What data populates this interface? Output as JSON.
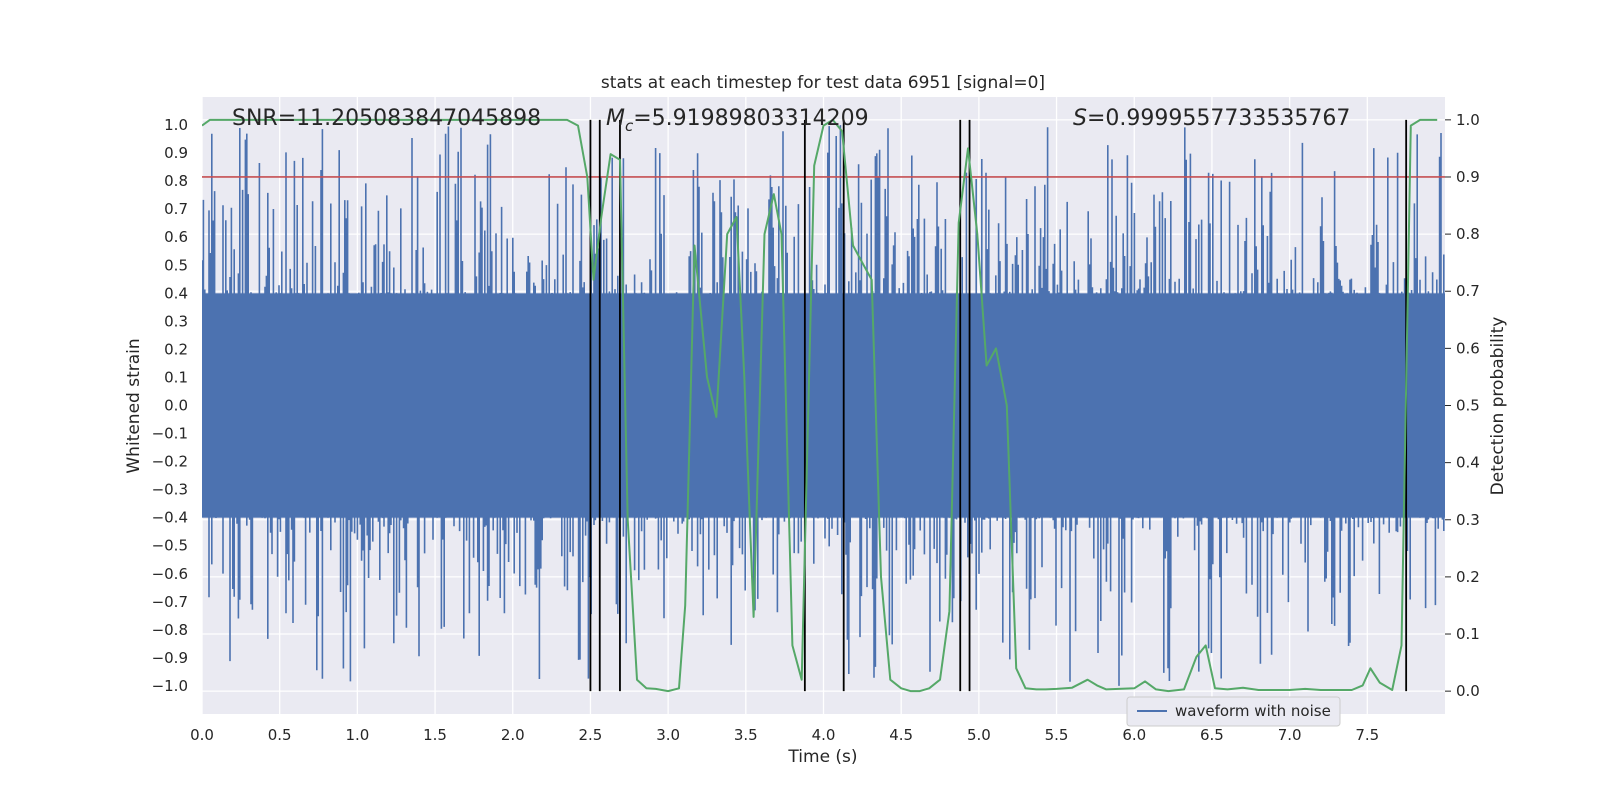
{
  "chart_data": {
    "type": "line",
    "title": "stats at each timestep for test data 6951 [signal=0]",
    "xlabel": "Time (s)",
    "ylabel": "Whitened strain",
    "y2label": "Detection probability",
    "xlim": [
      0.0,
      8.0
    ],
    "ylim": [
      -1.1,
      1.1
    ],
    "y2lim": [
      -0.04,
      1.04
    ],
    "x_ticks": [
      0.0,
      0.5,
      1.0,
      1.5,
      2.0,
      2.5,
      3.0,
      3.5,
      4.0,
      4.5,
      5.0,
      5.5,
      6.0,
      6.5,
      7.0,
      7.5
    ],
    "x_tick_labels": [
      "0.0",
      "0.5",
      "1.0",
      "1.5",
      "2.0",
      "2.5",
      "3.0",
      "3.5",
      "4.0",
      "4.5",
      "5.0",
      "5.5",
      "6.0",
      "6.5",
      "7.0",
      "7.5"
    ],
    "y_ticks": [
      -1.0,
      -0.9,
      -0.8,
      -0.7,
      -0.6,
      -0.5,
      -0.4,
      -0.3,
      -0.2,
      -0.1,
      0.0,
      0.1,
      0.2,
      0.3,
      0.4,
      0.5,
      0.6,
      0.7,
      0.8,
      0.9,
      1.0
    ],
    "y_tick_labels": [
      "−1.0",
      "−0.9",
      "−0.8",
      "−0.7",
      "−0.6",
      "−0.5",
      "−0.4",
      "−0.3",
      "−0.2",
      "−0.1",
      "0.0",
      "0.1",
      "0.2",
      "0.3",
      "0.4",
      "0.5",
      "0.6",
      "0.7",
      "0.8",
      "0.9",
      "1.0"
    ],
    "y2_ticks": [
      0.0,
      0.1,
      0.2,
      0.3,
      0.4,
      0.5,
      0.6,
      0.7,
      0.8,
      0.9,
      1.0
    ],
    "y2_tick_labels": [
      "0.0",
      "0.1",
      "0.2",
      "0.3",
      "0.4",
      "0.5",
      "0.6",
      "0.7",
      "0.8",
      "0.9",
      "1.0"
    ],
    "grid": true,
    "legend_position": "lower-right",
    "threshold": {
      "axis": "y2",
      "value": 0.9,
      "color": "#c44e52"
    },
    "vertical_lines": [
      2.5,
      2.56,
      2.69,
      3.88,
      4.13,
      4.88,
      4.94,
      7.75
    ],
    "annotations": {
      "snr": "SNR=11.205083847045898",
      "mc_symbol": "M",
      "mc_subscript": "c",
      "mc_value": "=5.91989803314209",
      "s_symbol": "S",
      "s_value": "=0.9999557733535767"
    },
    "series": [
      {
        "name": "waveform with noise",
        "axis": "y",
        "color": "#4c72b0",
        "kind": "noise",
        "sample_rate_hz": 2048,
        "duration_s": 8.0,
        "core_amplitude": 0.4,
        "peak_max": 1.0,
        "trough_min": -1.0
      },
      {
        "name": "detection probability",
        "axis": "y2",
        "color": "#55a868",
        "x": [
          0.0,
          0.05,
          0.1,
          2.35,
          2.42,
          2.48,
          2.52,
          2.57,
          2.63,
          2.69,
          2.74,
          2.8,
          2.86,
          2.92,
          3.0,
          3.07,
          3.11,
          3.17,
          3.25,
          3.31,
          3.38,
          3.44,
          3.49,
          3.55,
          3.62,
          3.68,
          3.73,
          3.8,
          3.86,
          3.94,
          4.0,
          4.06,
          4.12,
          4.19,
          4.25,
          4.31,
          4.37,
          4.43,
          4.5,
          4.56,
          4.62,
          4.68,
          4.75,
          4.81,
          4.87,
          4.93,
          4.99,
          5.05,
          5.11,
          5.18,
          5.24,
          5.3,
          5.37,
          5.43,
          5.5,
          5.6,
          5.7,
          5.76,
          5.82,
          5.9,
          6.0,
          6.07,
          6.14,
          6.22,
          6.32,
          6.4,
          6.46,
          6.52,
          6.6,
          6.7,
          6.8,
          6.9,
          7.0,
          7.1,
          7.2,
          7.3,
          7.4,
          7.47,
          7.52,
          7.58,
          7.66,
          7.72,
          7.78,
          7.84,
          7.9,
          7.95
        ],
        "y": [
          0.99,
          1.0,
          1.0,
          1.0,
          0.99,
          0.9,
          0.72,
          0.83,
          0.94,
          0.93,
          0.3,
          0.02,
          0.005,
          0.004,
          0.0,
          0.005,
          0.15,
          0.78,
          0.55,
          0.48,
          0.8,
          0.83,
          0.55,
          0.13,
          0.8,
          0.87,
          0.8,
          0.08,
          0.02,
          0.92,
          0.99,
          1.0,
          0.98,
          0.78,
          0.75,
          0.72,
          0.2,
          0.02,
          0.005,
          0.0,
          0.0,
          0.005,
          0.02,
          0.14,
          0.82,
          0.95,
          0.8,
          0.57,
          0.6,
          0.5,
          0.04,
          0.005,
          0.003,
          0.003,
          0.004,
          0.006,
          0.02,
          0.01,
          0.003,
          0.004,
          0.005,
          0.017,
          0.003,
          0.0,
          0.003,
          0.06,
          0.08,
          0.005,
          0.003,
          0.006,
          0.002,
          0.002,
          0.002,
          0.004,
          0.002,
          0.002,
          0.002,
          0.01,
          0.04,
          0.015,
          0.002,
          0.08,
          0.99,
          1.0,
          1.0,
          1.0
        ]
      }
    ],
    "legend": [
      {
        "label": "waveform with noise",
        "color": "#4c72b0"
      }
    ]
  }
}
